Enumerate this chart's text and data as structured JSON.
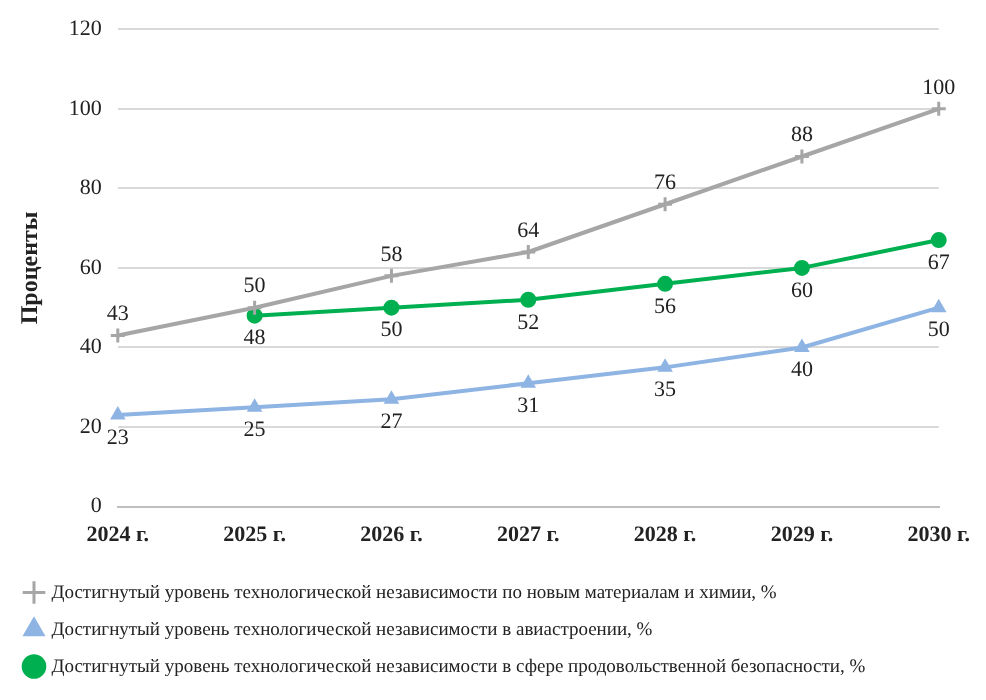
{
  "chart_data": {
    "type": "line",
    "ylabel": "Проценты",
    "categories": [
      "2024 г.",
      "2025 г.",
      "2026 г.",
      "2027 г.",
      "2028 г.",
      "2029 г.",
      "2030 г."
    ],
    "series": [
      {
        "name": "Достигнутый уровень технологической независимости по новым материалам и химии, %",
        "color": "#a6a6a6",
        "marker": "cross",
        "values": [
          43,
          50,
          58,
          64,
          76,
          88,
          100
        ]
      },
      {
        "name": "Достигнутый уровень технологической независимости в авиастроении, %",
        "color": "#8eb4e3",
        "marker": "triangle",
        "values": [
          23,
          25,
          27,
          31,
          35,
          40,
          50
        ]
      },
      {
        "name": "Достигнутый уровень технологической независимости в сфере продовольственной безопасности, %",
        "color": "#00b050",
        "marker": "circle",
        "values": [
          null,
          48,
          50,
          52,
          56,
          60,
          67
        ]
      }
    ],
    "ylim": [
      0,
      120
    ],
    "yticks": [
      0,
      20,
      40,
      60,
      80,
      100,
      120
    ],
    "grid": "y",
    "legend": "bottom",
    "data_labels": true,
    "line_style": "solid"
  }
}
